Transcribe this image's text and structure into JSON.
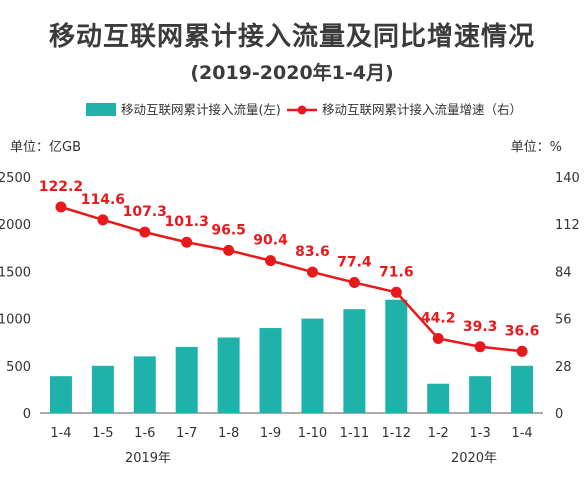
{
  "title": "移动互联网累计接入流量及同比增速情况",
  "subtitle": "(2019-2020年1-4月)",
  "left_unit": "单位：亿GB",
  "right_unit": "单位：%",
  "year_labels": [
    "2019年",
    "2020年"
  ],
  "colors": {
    "bar": "#1fb2ab",
    "line": "#e8191c",
    "axis": "#555555"
  },
  "chart_data": {
    "type": "bar",
    "categories": [
      "1-4",
      "1-5",
      "1-6",
      "1-7",
      "1-8",
      "1-9",
      "1-10",
      "1-11",
      "1-12",
      "1-2",
      "1-3",
      "1-4"
    ],
    "series": [
      {
        "name": "移动互联网累计接入流量(左)",
        "type": "bar",
        "axis": "left",
        "values": [
          390,
          500,
          600,
          700,
          800,
          900,
          1000,
          1100,
          1200,
          310,
          390,
          500
        ]
      },
      {
        "name": "移动互联网累计接入流量增速（右）",
        "type": "line",
        "axis": "right",
        "values": [
          122.2,
          114.6,
          107.3,
          101.3,
          96.5,
          90.4,
          83.6,
          77.4,
          71.6,
          44.2,
          39.3,
          36.6
        ],
        "labels": [
          "122.2",
          "114.6",
          "107.3",
          "101.3",
          "96.5",
          "90.4",
          "83.6",
          "77.4",
          "71.6",
          "44.2",
          "39.3",
          "36.6"
        ]
      }
    ],
    "y_left": {
      "range": [
        0,
        2500
      ],
      "ticks": [
        "0",
        "500",
        "1000",
        "1500",
        "2000",
        "2500"
      ]
    },
    "y_right": {
      "range": [
        0,
        140
      ],
      "ticks": [
        "0",
        "28",
        "56",
        "84",
        "112",
        "140"
      ]
    },
    "legend": "top",
    "grid": false
  }
}
